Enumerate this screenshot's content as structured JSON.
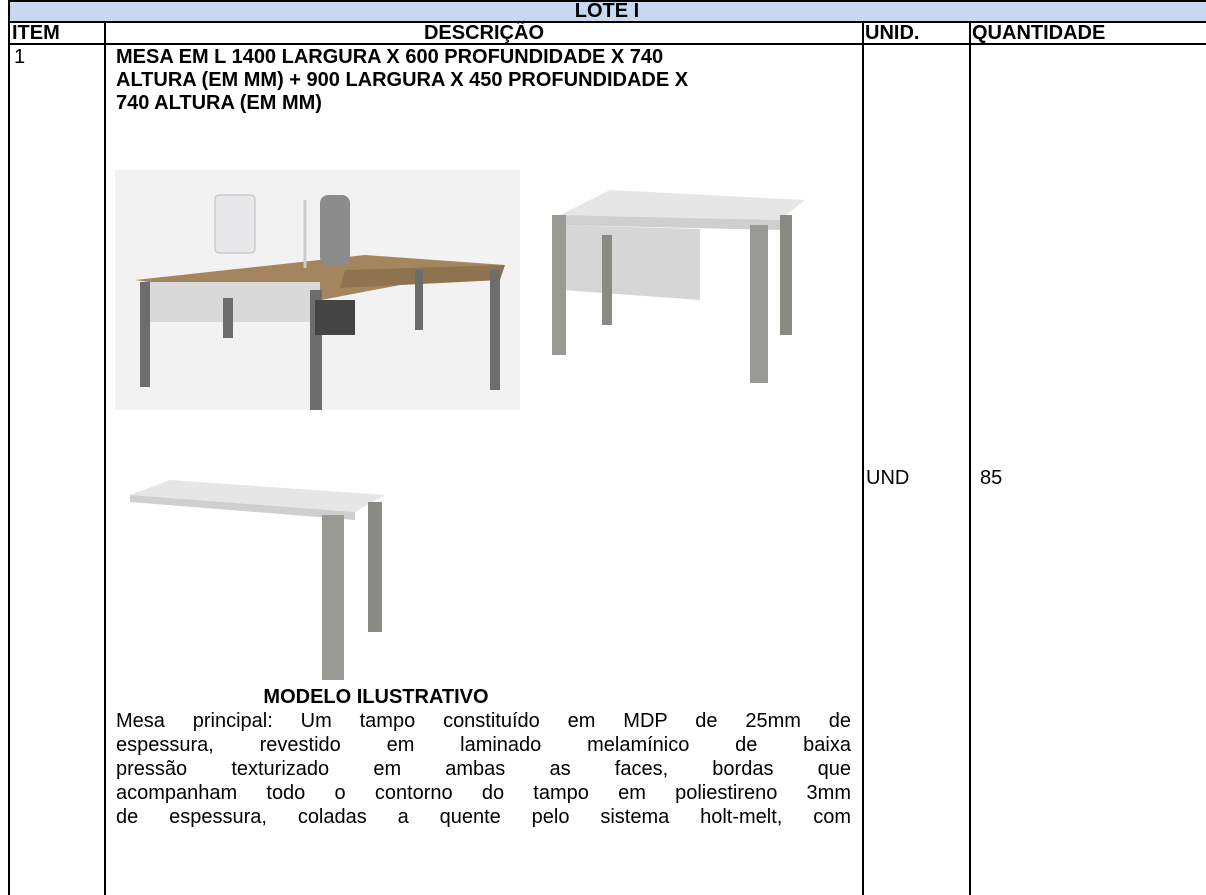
{
  "table": {
    "title": "LOTE I",
    "headers": [
      "ITEM",
      "DESCRIÇÃO",
      "UNID.",
      "QUANTIDADE"
    ],
    "rows": [
      {
        "item": "1",
        "title_lines": [
          "MESA EM L 1400 LARGURA X 600 PROFUNDIDADE X 740",
          "ALTURA (EM MM) + 900 LARGURA X 450  PROFUNDIDADE X",
          "740 ALTURA (EM MM)"
        ],
        "image_caption": "MODELO ILUSTRATIVO",
        "description_lines": [
          "Mesa principal: Um tampo constituído em MDP de 25mm de",
          "espessura, revestido em laminado melamínico de baixa",
          "pressão texturizado em ambas as faces, bordas que",
          "acompanham todo o contorno do tampo em poliestireno 3mm",
          "de espessura, coladas a quente pelo sistema holt-melt, com"
        ],
        "unit": "UND",
        "quantity": "85"
      }
    ]
  }
}
